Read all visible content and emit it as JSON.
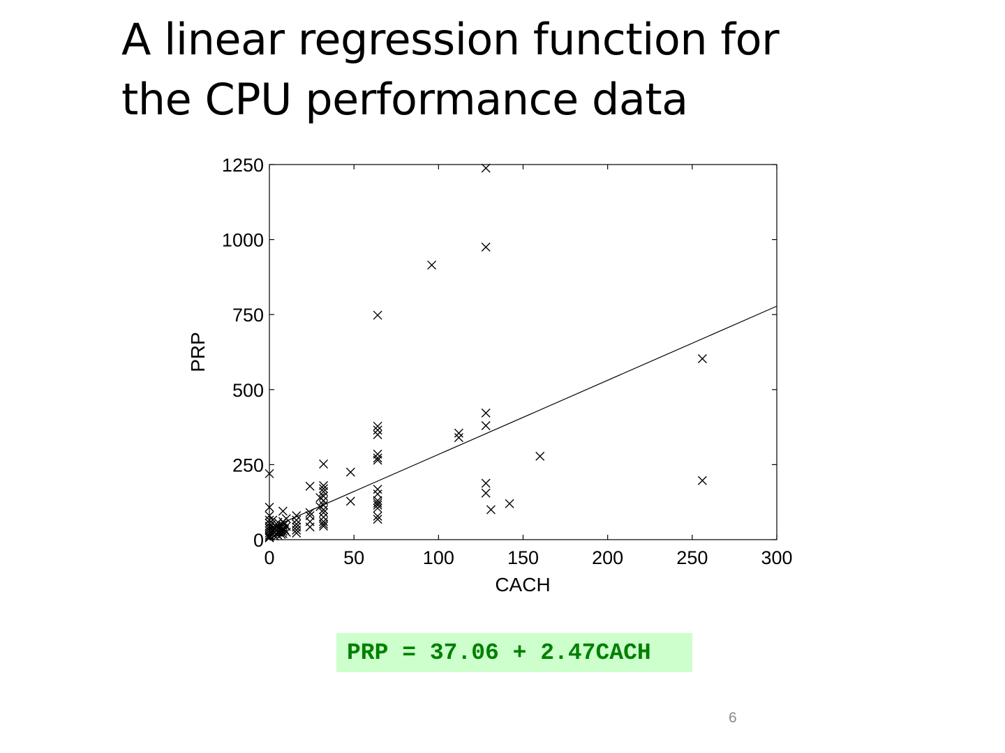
{
  "slide": {
    "title_lines": [
      "A linear regression function for",
      "the CPU performance data"
    ],
    "equation": "PRP = 37.06 + 2.47CACH",
    "page_number": "6",
    "colors": {
      "equation_text": "#008000",
      "equation_background": "#ccffcc",
      "page_number": "#8a8a8a"
    }
  },
  "chart_data": {
    "type": "scatter",
    "title": "",
    "xlabel": "CACH",
    "ylabel": "PRP",
    "xlim": [
      0,
      300
    ],
    "ylim": [
      0,
      1250
    ],
    "xticks": [
      0,
      50,
      100,
      150,
      200,
      250,
      300
    ],
    "yticks": [
      0,
      250,
      500,
      750,
      1000,
      1250
    ],
    "marker": "x",
    "grid": false,
    "points": [
      [
        0,
        220
      ],
      [
        0,
        108
      ],
      [
        0,
        80
      ],
      [
        0,
        65
      ],
      [
        0,
        55
      ],
      [
        0,
        45
      ],
      [
        0,
        38
      ],
      [
        0,
        30
      ],
      [
        0,
        22
      ],
      [
        0,
        15
      ],
      [
        0,
        10
      ],
      [
        0,
        6
      ],
      [
        1,
        50
      ],
      [
        1,
        25
      ],
      [
        2,
        65
      ],
      [
        2,
        40
      ],
      [
        2,
        28
      ],
      [
        2,
        18
      ],
      [
        3,
        35
      ],
      [
        3,
        12
      ],
      [
        4,
        45
      ],
      [
        4,
        30
      ],
      [
        4,
        20
      ],
      [
        5,
        58
      ],
      [
        5,
        38
      ],
      [
        5,
        25
      ],
      [
        5,
        15
      ],
      [
        6,
        42
      ],
      [
        6,
        26
      ],
      [
        7,
        32
      ],
      [
        7,
        18
      ],
      [
        8,
        95
      ],
      [
        8,
        60
      ],
      [
        8,
        48
      ],
      [
        8,
        38
      ],
      [
        8,
        28
      ],
      [
        8,
        20
      ],
      [
        9,
        52
      ],
      [
        9,
        33
      ],
      [
        10,
        70
      ],
      [
        10,
        44
      ],
      [
        10,
        25
      ],
      [
        16,
        80
      ],
      [
        16,
        65
      ],
      [
        16,
        52
      ],
      [
        16,
        42
      ],
      [
        16,
        32
      ],
      [
        16,
        22
      ],
      [
        24,
        178
      ],
      [
        24,
        90
      ],
      [
        24,
        80
      ],
      [
        24,
        60
      ],
      [
        24,
        42
      ],
      [
        30,
        140
      ],
      [
        30,
        110
      ],
      [
        32,
        252
      ],
      [
        32,
        180
      ],
      [
        32,
        170
      ],
      [
        32,
        160
      ],
      [
        32,
        145
      ],
      [
        32,
        130
      ],
      [
        32,
        115
      ],
      [
        32,
        100
      ],
      [
        32,
        90
      ],
      [
        32,
        75
      ],
      [
        32,
        60
      ],
      [
        32,
        52
      ],
      [
        32,
        45
      ],
      [
        48,
        225
      ],
      [
        48,
        128
      ],
      [
        64,
        748
      ],
      [
        64,
        378
      ],
      [
        64,
        365
      ],
      [
        64,
        350
      ],
      [
        64,
        285
      ],
      [
        64,
        272
      ],
      [
        64,
        265
      ],
      [
        64,
        168
      ],
      [
        64,
        152
      ],
      [
        64,
        130
      ],
      [
        64,
        122
      ],
      [
        64,
        115
      ],
      [
        64,
        105
      ],
      [
        64,
        78
      ],
      [
        64,
        68
      ],
      [
        96,
        915
      ],
      [
        112,
        355
      ],
      [
        112,
        340
      ],
      [
        128,
        1238
      ],
      [
        128,
        975
      ],
      [
        128,
        422
      ],
      [
        128,
        380
      ],
      [
        128,
        188
      ],
      [
        128,
        155
      ],
      [
        131,
        100
      ],
      [
        142,
        120
      ],
      [
        160,
        278
      ],
      [
        256,
        603
      ],
      [
        256,
        197
      ]
    ],
    "regression": {
      "intercept": 37.06,
      "slope": 2.47,
      "x_range": [
        0,
        300
      ]
    }
  }
}
